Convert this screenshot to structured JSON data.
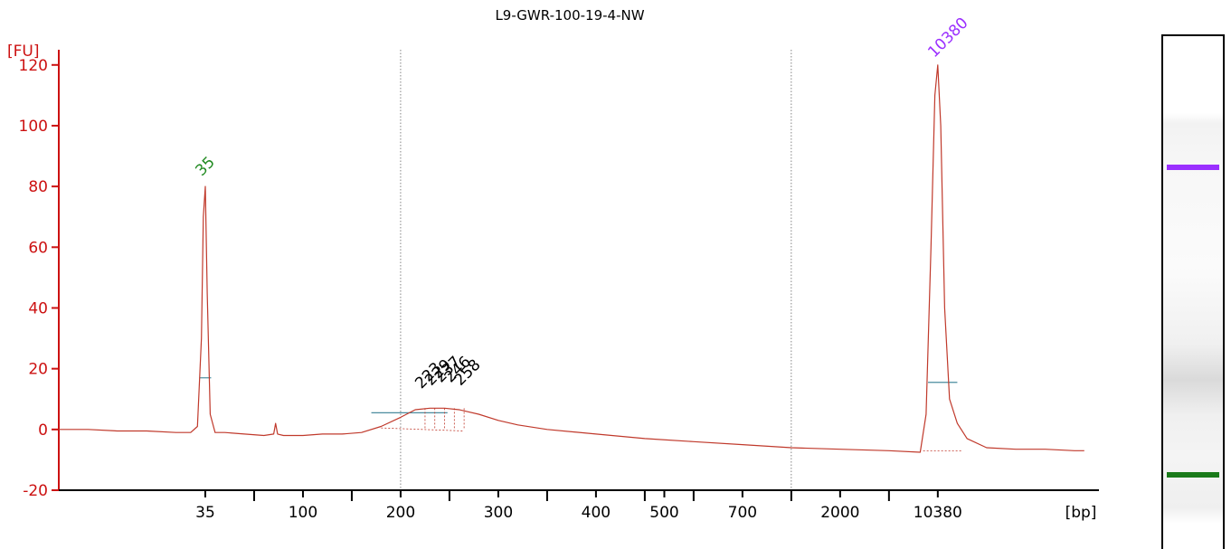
{
  "title": "L9-GWR-100-19-4-NW",
  "colors": {
    "axis": "#cc1111",
    "trace": "#c0392b",
    "marker_label": "#228B22",
    "upper_marker_label": "#9b30ff",
    "baseline": "#4a8c9e",
    "band_upper": "#9b30ff",
    "band_lower": "#1a7a1a"
  },
  "chart_data": {
    "type": "line",
    "title": "L9-GWR-100-19-4-NW",
    "ylabel": "[FU]",
    "xlabel": "[bp]",
    "ylim": [
      -20,
      125
    ],
    "yticks": [
      -20,
      0,
      20,
      40,
      60,
      80,
      100,
      120
    ],
    "x_tick_labels": [
      "35",
      "100",
      "200",
      "300",
      "400",
      "500",
      "700",
      "2000",
      "10380"
    ],
    "x_tick_pos": [
      1.5,
      2.5,
      3.5,
      4.5,
      5.5,
      6.2,
      7.0,
      8.0,
      9.0
    ],
    "x_minor_ticks": [
      2.0,
      3.0,
      4.0,
      5.0,
      6.0,
      6.5,
      7.5,
      8.5
    ],
    "xlim": [
      0,
      10.65
    ],
    "grid_lines_x": [
      3.5,
      7.5
    ],
    "peak_labels": [
      {
        "text": "35",
        "x": 1.5,
        "y": 82,
        "color": "green"
      },
      {
        "text": "10380",
        "x": 9.0,
        "y": 121,
        "color": "purple"
      },
      {
        "text": "223",
        "x": 3.75,
        "y": 12,
        "color": "black"
      },
      {
        "text": "229",
        "x": 3.85,
        "y": 13,
        "color": "black"
      },
      {
        "text": "237",
        "x": 3.95,
        "y": 14,
        "color": "black"
      },
      {
        "text": "246",
        "x": 4.05,
        "y": 14,
        "color": "black"
      },
      {
        "text": "258",
        "x": 4.15,
        "y": 13,
        "color": "black"
      }
    ],
    "series": [
      {
        "x": [
          0.0,
          0.3,
          0.6,
          0.9,
          1.2,
          1.35,
          1.42,
          1.46,
          1.48,
          1.5,
          1.52,
          1.55,
          1.6,
          1.7,
          1.9,
          2.1,
          2.2,
          2.22,
          2.24,
          2.3,
          2.5,
          2.7,
          2.9,
          3.1,
          3.3,
          3.5,
          3.65,
          3.8,
          3.95,
          4.1,
          4.3,
          4.5,
          4.7,
          5.0,
          5.5,
          6.0,
          6.5,
          7.0,
          7.5,
          8.0,
          8.5,
          8.82,
          8.88,
          8.93,
          8.97,
          9.0,
          9.03,
          9.07,
          9.12,
          9.2,
          9.3,
          9.5,
          9.8,
          10.1,
          10.4,
          10.5
        ],
        "y": [
          0,
          0,
          -0.5,
          -0.5,
          -1,
          -1,
          1,
          30,
          70,
          80,
          45,
          5,
          -1,
          -1,
          -1.5,
          -2,
          -1.5,
          2,
          -1.5,
          -2,
          -2,
          -1.5,
          -1.5,
          -1,
          1,
          4,
          6.5,
          7,
          7,
          6.5,
          5,
          3,
          1.5,
          0,
          -1.5,
          -3,
          -4,
          -5,
          -6,
          -6.5,
          -7,
          -7.5,
          5,
          60,
          110,
          120,
          100,
          40,
          10,
          2,
          -3,
          -6,
          -6.5,
          -6.5,
          -7,
          -7
        ]
      }
    ],
    "baselines": [
      {
        "x": [
          1.44,
          1.56
        ],
        "y": 17
      },
      {
        "x": [
          3.2,
          3.98
        ],
        "y": 5.5
      },
      {
        "x": [
          8.9,
          9.2
        ],
        "y": 15.5
      }
    ],
    "gel_bands": [
      {
        "frac": 0.25,
        "color": "purple"
      },
      {
        "frac": 0.85,
        "color": "green"
      }
    ]
  }
}
